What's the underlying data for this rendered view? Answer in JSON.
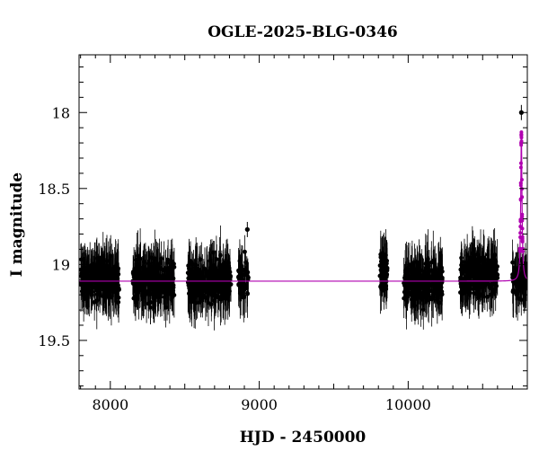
{
  "chart_data": {
    "type": "scatter",
    "title": "OGLE-2025-BLG-0346",
    "xlabel": "HJD - 2450000",
    "ylabel": "I magnitude",
    "xlim": [
      7790,
      10800
    ],
    "ylim": [
      19.82,
      17.62
    ],
    "y_inverted": true,
    "x_ticks": [
      8000,
      9000,
      10000
    ],
    "x_tick_labels": [
      "8000",
      "9000",
      "10000"
    ],
    "y_ticks": [
      18,
      18.5,
      19,
      19.5
    ],
    "y_tick_labels": [
      "18",
      "18.5",
      "19",
      "19.5"
    ],
    "grid": false,
    "legend": "none",
    "baseline_magnitude": 19.11,
    "colors": {
      "data": "#000000",
      "model": "#b000b0",
      "axes": "#000000"
    },
    "observing_seasons": [
      {
        "start": 7800,
        "end": 8060,
        "mean_mag": 19.1,
        "scatter": 0.1,
        "n_points": 260
      },
      {
        "start": 8150,
        "end": 8430,
        "mean_mag": 19.1,
        "scatter": 0.1,
        "n_points": 260
      },
      {
        "start": 8520,
        "end": 8810,
        "mean_mag": 19.12,
        "scatter": 0.1,
        "n_points": 280
      },
      {
        "start": 8860,
        "end": 8930,
        "mean_mag": 19.1,
        "scatter": 0.09,
        "n_points": 50
      },
      {
        "start": 9810,
        "end": 9860,
        "mean_mag": 19.05,
        "scatter": 0.1,
        "n_points": 60
      },
      {
        "start": 9970,
        "end": 10230,
        "mean_mag": 19.12,
        "scatter": 0.1,
        "n_points": 250
      },
      {
        "start": 10350,
        "end": 10600,
        "mean_mag": 19.07,
        "scatter": 0.1,
        "n_points": 250
      },
      {
        "start": 10700,
        "end": 10800,
        "mean_mag": 19.1,
        "scatter": 0.09,
        "n_points": 80
      }
    ],
    "notable_points": [
      {
        "x": 10760,
        "y": 18.0
      },
      {
        "x": 8920,
        "y": 18.77
      }
    ],
    "model_curve": {
      "name": "",
      "t0": 10760,
      "peak_mag": 18.15,
      "baseline_mag": 19.11,
      "timescale_days": 5
    }
  }
}
